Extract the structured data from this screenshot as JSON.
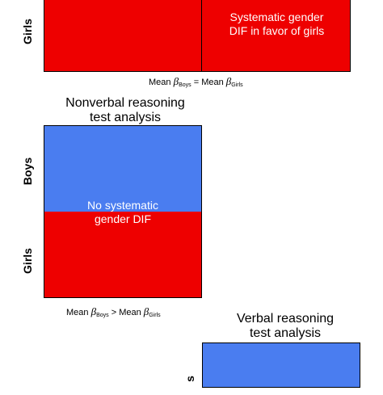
{
  "panel_top": {
    "ylabel_girls": "Girls",
    "right_text_line1": "Systematic  gender",
    "right_text_line2": "DIF in favor of girls",
    "caption": {
      "mean1": "Mean",
      "beta1": "β",
      "sub1": "Boys",
      "op": "=",
      "mean2": "Mean",
      "beta2": "β",
      "sub2": "Girls"
    }
  },
  "panel_middle": {
    "title_line1": "Nonverbal reasoning",
    "title_line2": "test analysis",
    "ylabel_boys": "Boys",
    "ylabel_girls": "Girls",
    "center_text_line1": "No systematic",
    "center_text_line2": "gender DIF",
    "caption": {
      "mean1": "Mean",
      "beta1": "β",
      "sub1": "Boys",
      "op": ">",
      "mean2": "Mean",
      "beta2": "β",
      "sub2": "Girls"
    }
  },
  "panel_bottom": {
    "title_line1": "Verbal reasoning",
    "title_line2": "test analysis",
    "ylabel_partial": "s"
  },
  "colors": {
    "boys": "#4a7df0",
    "girls": "#ee0000",
    "text_on_fill": "#ffffff"
  }
}
